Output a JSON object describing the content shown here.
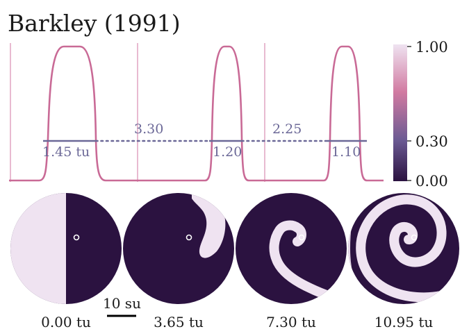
{
  "title": "Barkley (1991)",
  "colorbar": {
    "ticks": [
      "1.00",
      "0.30",
      "0.00"
    ],
    "colors": {
      "high": "#efe3f1",
      "mid": "#d17aa1",
      "low_mid": "#6b5a93",
      "low": "#2b1240"
    }
  },
  "trace": {
    "color": "#c96a96",
    "threshold_color": "#6b6897",
    "threshold": 0.3,
    "labels": {
      "pulse1": "1.45 tu",
      "gap1": "3.30",
      "pulse2": "1.20",
      "gap2": "2.25",
      "pulse3": "1.10"
    }
  },
  "snapshots": {
    "colors": {
      "excited": "#efe3f1",
      "rest": "#2b1240",
      "marker": "#ffffff"
    },
    "captions": [
      "0.00 tu",
      "3.65 tu",
      "7.30 tu",
      "10.95 tu"
    ],
    "scalebar_label": "10 su"
  }
}
